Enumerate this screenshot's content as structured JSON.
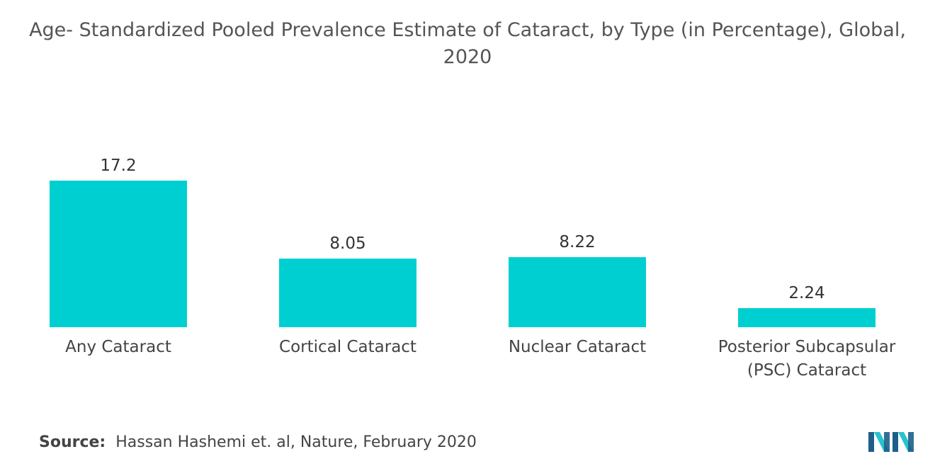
{
  "title": {
    "line1": "Age- Standardized Pooled Prevalence Estimate of Cataract, by Type (in Percentage), Global,",
    "line2": "2020"
  },
  "chart_data": {
    "type": "bar",
    "categories": [
      [
        "Any Cataract"
      ],
      [
        "Cortical Cataract"
      ],
      [
        "Nuclear Cataract"
      ],
      [
        "Posterior Subcapsular",
        "(PSC) Cataract"
      ]
    ],
    "values": [
      17.2,
      8.05,
      8.22,
      2.24
    ],
    "value_labels": [
      "17.2",
      "8.05",
      "8.22",
      "2.24"
    ],
    "ylim": [
      0,
      17.2
    ],
    "grid": false,
    "bar_color": "#00cfd1"
  },
  "source": {
    "label": "Source:",
    "text": "Hassan Hashemi et. al, Nature, February 2020"
  },
  "logo": {
    "icon": "mordor-intelligence-logo",
    "colors": [
      "#1d5f8a",
      "#27c3cf"
    ]
  }
}
